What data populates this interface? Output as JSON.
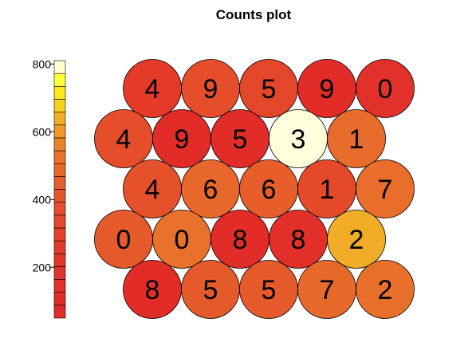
{
  "chart_data": {
    "type": "heatmap",
    "title": "Counts plot",
    "colorbar": {
      "ticks": [
        "200",
        "400",
        "600",
        "800"
      ],
      "tick_values": [
        200,
        400,
        600,
        800
      ],
      "range": [
        50,
        810
      ],
      "levels": 20,
      "colors": [
        "#e22c28",
        "#e22c28",
        "#e2302a",
        "#e3332a",
        "#e3362a",
        "#e33a2a",
        "#e4412a",
        "#e4462a",
        "#e54d2b",
        "#e5552b",
        "#e65e2b",
        "#e7682b",
        "#e8742b",
        "#ea832b",
        "#ef9a29",
        "#f2b028",
        "#f7cf20",
        "#ffe81c",
        "#ffff3a",
        "#ffffd0"
      ]
    },
    "rows": [
      {
        "labels": [
          "4",
          "9",
          "5",
          "9",
          "0"
        ],
        "counts": [
          95,
          180,
          160,
          65,
          75
        ],
        "colors": [
          "#e33a2a",
          "#e54d2b",
          "#e4462a",
          "#e22c28",
          "#e2302a"
        ]
      },
      {
        "labels": [
          "4",
          "9",
          "5",
          "3",
          "1"
        ],
        "counts": [
          205,
          65,
          95,
          810,
          355
        ],
        "colors": [
          "#e54d2b",
          "#e22c28",
          "#e22c28",
          "#ffffdc",
          "#e86c2b"
        ]
      },
      {
        "labels": [
          "4",
          "6",
          "6",
          "1",
          "7"
        ],
        "counts": [
          215,
          340,
          290,
          180,
          330
        ],
        "colors": [
          "#e5512a",
          "#e8672b",
          "#e75e2b",
          "#e4492a",
          "#e96d2b"
        ]
      },
      {
        "labels": [
          "0",
          "0",
          "8",
          "8",
          "2"
        ],
        "counts": [
          260,
          385,
          85,
          110,
          470
        ],
        "colors": [
          "#e55a2a",
          "#e8722b",
          "#e22c28",
          "#e22f2a",
          "#f1ad27"
        ]
      },
      {
        "labels": [
          "8",
          "5",
          "5",
          "7",
          "2"
        ],
        "counts": [
          70,
          230,
          230,
          290,
          340
        ],
        "colors": [
          "#e22c28",
          "#e55a2a",
          "#e55a2a",
          "#e76a2b",
          "#e8702b"
        ]
      }
    ]
  }
}
